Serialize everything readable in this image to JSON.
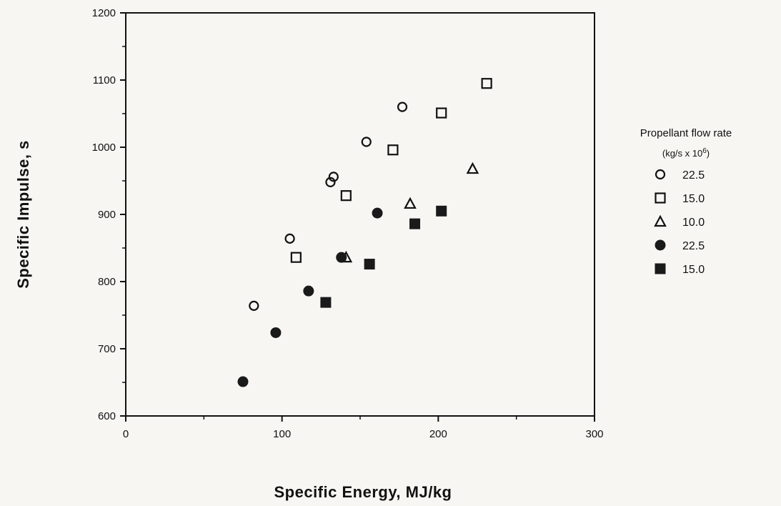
{
  "chart_data": {
    "type": "scatter",
    "xlabel": "Specific Energy, MJ/kg",
    "ylabel": "Specific Impulse, s",
    "xlim": [
      0,
      300
    ],
    "ylim": [
      600,
      1200
    ],
    "x_ticks": [
      0,
      100,
      200,
      300
    ],
    "y_ticks": [
      600,
      700,
      800,
      900,
      1000,
      1100,
      1200
    ],
    "grid": false,
    "legend": {
      "title": "Propellant flow rate",
      "subtitle_prefix": "(kg/s x 10",
      "subtitle_exp": "6",
      "subtitle_suffix": ")",
      "placement": "right"
    },
    "series": [
      {
        "name": "22.5",
        "marker": "circle-open",
        "points": [
          [
            82,
            764
          ],
          [
            105,
            864
          ],
          [
            131,
            948
          ],
          [
            133,
            956
          ],
          [
            154,
            1008
          ],
          [
            177,
            1060
          ]
        ]
      },
      {
        "name": "15.0",
        "marker": "square-open",
        "points": [
          [
            109,
            836
          ],
          [
            141,
            928
          ],
          [
            171,
            996
          ],
          [
            202,
            1051
          ],
          [
            231,
            1095
          ]
        ]
      },
      {
        "name": "10.0",
        "marker": "triangle-open",
        "points": [
          [
            141,
            836
          ],
          [
            182,
            916
          ],
          [
            222,
            968
          ]
        ]
      },
      {
        "name": "22.5",
        "marker": "circle-filled",
        "points": [
          [
            75,
            651
          ],
          [
            96,
            724
          ],
          [
            117,
            786
          ],
          [
            138,
            836
          ],
          [
            161,
            902
          ]
        ]
      },
      {
        "name": "15.0",
        "marker": "square-filled",
        "points": [
          [
            128,
            769
          ],
          [
            156,
            826
          ],
          [
            185,
            886
          ],
          [
            202,
            905
          ]
        ]
      }
    ]
  }
}
